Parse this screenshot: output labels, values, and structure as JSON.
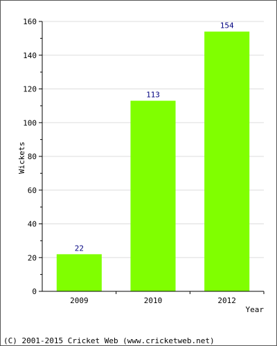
{
  "chart_data": {
    "type": "bar",
    "categories": [
      "2009",
      "2010",
      "2012"
    ],
    "values": [
      22,
      113,
      154
    ],
    "data_labels": [
      "22",
      "113",
      "154"
    ],
    "xlabel": "Year",
    "ylabel": "Wickets",
    "ylim": [
      0,
      160
    ],
    "y_ticks": [
      0,
      20,
      40,
      60,
      80,
      100,
      120,
      140,
      160
    ],
    "y_tick_labels": [
      "0",
      "20",
      "40",
      "60",
      "80",
      "100",
      "120",
      "140",
      "160"
    ],
    "grid": true,
    "bar_color": "#80ff00",
    "data_label_color": "#000080",
    "grid_color": "#dddddd"
  },
  "footer": {
    "text": "(C) 2001-2015 Cricket Web (www.cricketweb.net)"
  }
}
